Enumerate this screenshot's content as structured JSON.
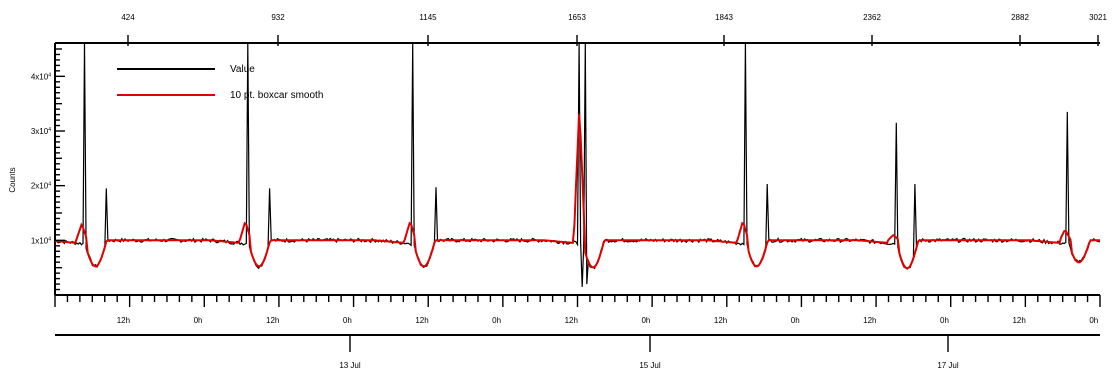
{
  "chart_data": {
    "type": "line",
    "ylabel": "Counts",
    "xlabel": "",
    "ylim": [
      0,
      45000
    ],
    "y_ticks": [
      {
        "value": 10000,
        "mantissa": "1x10",
        "exp": "4"
      },
      {
        "value": 20000,
        "mantissa": "2x10",
        "exp": "4"
      },
      {
        "value": 30000,
        "mantissa": "3x10",
        "exp": "4"
      },
      {
        "value": 40000,
        "mantissa": "4x10",
        "exp": "4"
      }
    ],
    "x_range_hours": [
      0,
      168
    ],
    "top_axis_labels": [
      "424",
      "932",
      "1145",
      "1653",
      "1843",
      "2362",
      "2882",
      "3021"
    ],
    "hour_axis_labels": [
      "12h",
      "0h",
      "12h",
      "0h",
      "12h",
      "0h",
      "12h",
      "0h",
      "12h",
      "0h",
      "12h",
      "0h",
      "12h",
      "0h"
    ],
    "date_axis_labels": [
      "13 Jul",
      "15 Jul",
      "17 Jul"
    ],
    "legend": {
      "position": "top-left",
      "entries": [
        {
          "label": "Value",
          "color": "#000000"
        },
        {
          "label": "10 pt. boxcar smooth",
          "color": "#e00000"
        }
      ]
    },
    "series": [
      {
        "name": "Value",
        "color": "#000000",
        "baseline": 10000,
        "spikes": [
          {
            "x": 4.7,
            "y": 48000
          },
          {
            "x": 8.2,
            "y": 19500
          },
          {
            "x": 31.0,
            "y": 48000
          },
          {
            "x": 34.5,
            "y": 19500
          },
          {
            "x": 57.5,
            "y": 48000
          },
          {
            "x": 61.3,
            "y": 19700
          },
          {
            "x": 84.2,
            "y": 48000
          },
          {
            "x": 85.2,
            "y": 48000
          },
          {
            "x": 111.0,
            "y": 48000
          },
          {
            "x": 114.5,
            "y": 20300
          },
          {
            "x": 135.2,
            "y": 31500
          },
          {
            "x": 138.3,
            "y": 20300
          },
          {
            "x": 162.8,
            "y": 33500
          }
        ],
        "dips": [
          {
            "x": 84.7,
            "y": 1500
          },
          {
            "x": 85.6,
            "y": 2000
          }
        ]
      },
      {
        "name": "10 pt. boxcar smooth",
        "color": "#e00000",
        "baseline": 10000,
        "events": [
          {
            "x": 4.7,
            "peak": 13000,
            "trough": 4700
          },
          {
            "x": 31.0,
            "peak": 13500,
            "trough": 4700
          },
          {
            "x": 57.5,
            "peak": 13500,
            "trough": 4700
          },
          {
            "x": 84.7,
            "peak": 34500,
            "trough": 4500
          },
          {
            "x": 111.0,
            "peak": 13500,
            "trough": 4700
          },
          {
            "x": 135.2,
            "peak": 11000,
            "trough": 4300
          },
          {
            "x": 162.8,
            "peak": 12000,
            "trough": 5500
          }
        ]
      }
    ]
  }
}
